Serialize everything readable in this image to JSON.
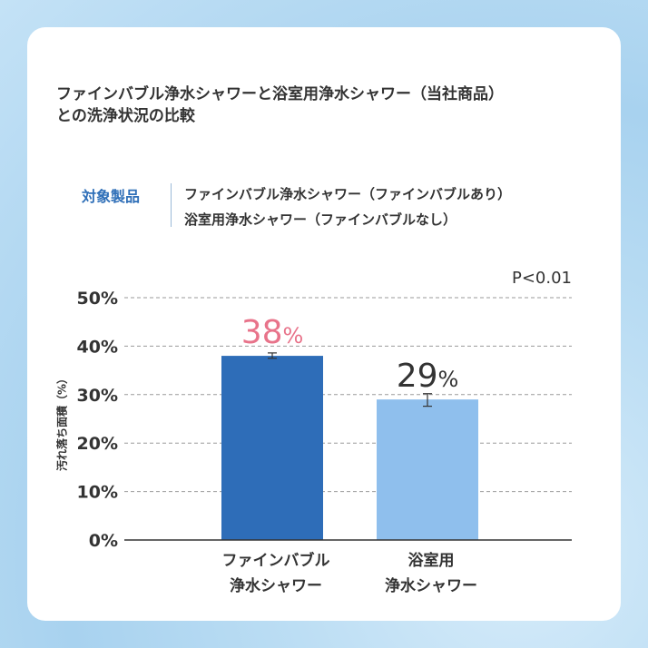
{
  "title_lines": [
    "ファインバブル浄水シャワーと浴室用浄水シャワー（当社商品）",
    "との洗浄状況の比較"
  ],
  "target_label": "対象製品",
  "products": [
    "ファインバブル浄水シャワー（ファインバブルあり）",
    "浴室用浄水シャワー（ファインバブルなし）"
  ],
  "p_value": "P<0.01",
  "colors": {
    "bar1": "#2e6db8",
    "bar2": "#8fbfed",
    "label1": "#e8738a",
    "label2": "#333333"
  },
  "chart_data": {
    "type": "bar",
    "categories": [
      [
        "ファインバブル",
        "浄水シャワー"
      ],
      [
        "浴室用",
        "浄水シャワー"
      ]
    ],
    "values": [
      38,
      29
    ],
    "value_labels": [
      "38",
      "29"
    ],
    "value_unit": "%",
    "error_bars": [
      [
        37.5,
        38.6
      ],
      [
        27.6,
        30.2
      ]
    ],
    "ylabel": "汚れ落ち面積（%）",
    "ylim": [
      0,
      50
    ],
    "yticks": [
      "0%",
      "10%",
      "20%",
      "30%",
      "40%",
      "50%"
    ],
    "ytick_values": [
      0,
      10,
      20,
      30,
      40,
      50
    ],
    "grid": true
  }
}
